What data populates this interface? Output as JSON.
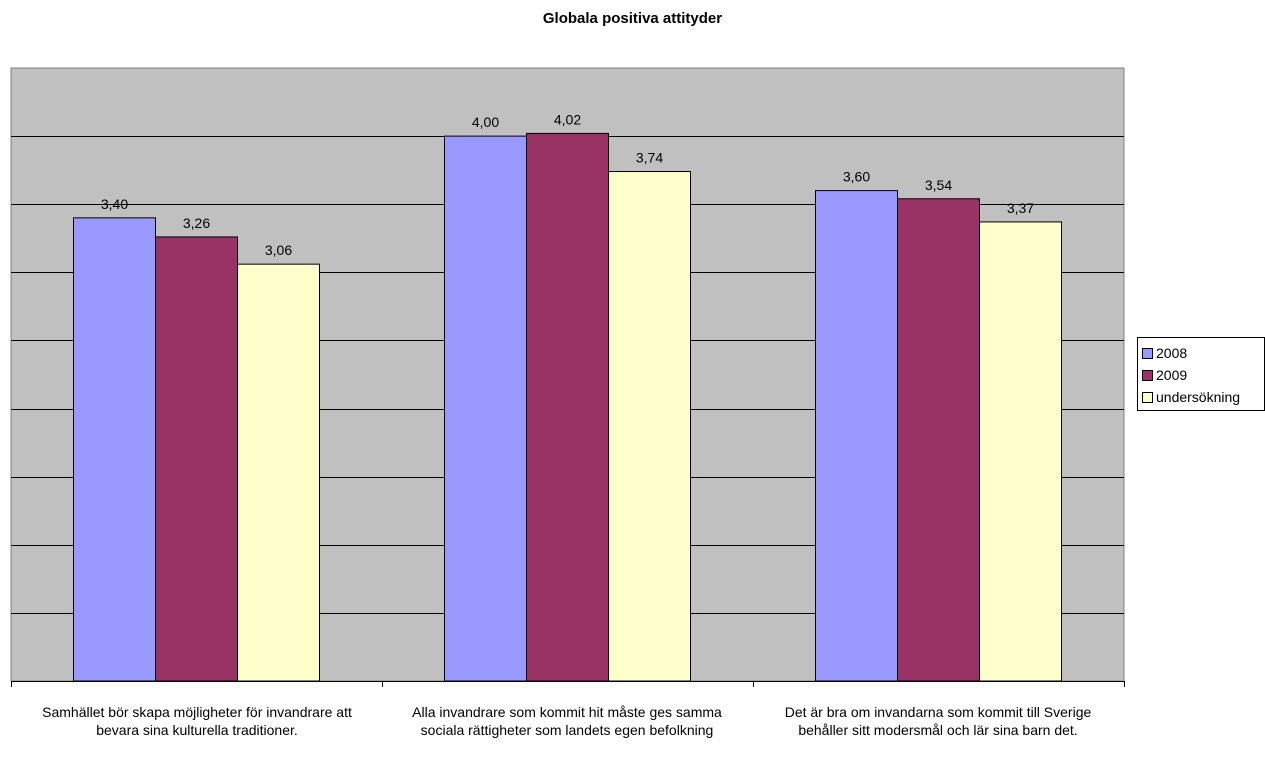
{
  "chart_data": {
    "type": "bar",
    "title": "Globala positiva attityder",
    "categories": [
      "Samhället bör skapa möjligheter för invandrare att bevara sina kulturella traditioner.",
      "Alla invandrare som kommit hit måste ges samma sociala rättigheter som landets egen befolkning",
      "Det är bra om invandarna som kommit till Sverige behåller sitt modersmål och lär sina barn det."
    ],
    "series": [
      {
        "name": "2008",
        "values": [
          3.4,
          4.0,
          3.6
        ],
        "labels": [
          "3,40",
          "4,00",
          "3,60"
        ],
        "color": "#9999ff"
      },
      {
        "name": "2009",
        "values": [
          3.26,
          4.02,
          3.54
        ],
        "labels": [
          "3,26",
          "4,02",
          "3,54"
        ],
        "color": "#993366"
      },
      {
        "name": "undersökning",
        "values": [
          3.06,
          3.74,
          3.37
        ],
        "labels": [
          "3,06",
          "3,74",
          "3,37"
        ],
        "color": "#ffffcc"
      }
    ],
    "ylim": [
      0,
      4.5
    ],
    "grid": true,
    "plot_background": "#c0c0c0",
    "legend_position": "right"
  }
}
